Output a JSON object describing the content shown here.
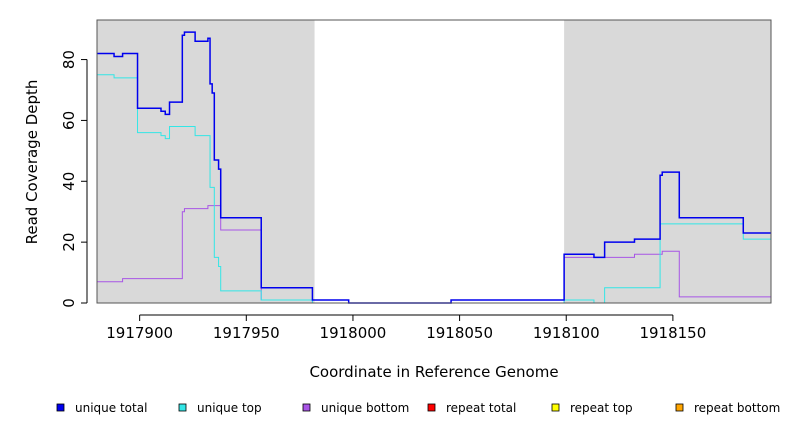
{
  "chart_data": {
    "type": "line",
    "title": "",
    "xlabel": "Coordinate in Reference Genome",
    "ylabel": "Read Coverage Depth",
    "xlim": [
      1917880,
      1918196
    ],
    "ylim": [
      0,
      93
    ],
    "x_ticks": [
      1917900,
      1917950,
      1918000,
      1918050,
      1918100,
      1918150
    ],
    "y_ticks": [
      0,
      20,
      40,
      60,
      80
    ],
    "grid": false,
    "legend_position": "bottom",
    "shaded_regions": [
      [
        1917880,
        1917982
      ],
      [
        1918099,
        1918196
      ]
    ],
    "series": [
      {
        "name": "unique total",
        "color": "#0000ee",
        "points": [
          [
            1917880,
            82
          ],
          [
            1917888,
            82
          ],
          [
            1917888,
            81
          ],
          [
            1917892,
            81
          ],
          [
            1917892,
            82
          ],
          [
            1917899,
            82
          ],
          [
            1917899,
            64
          ],
          [
            1917910,
            64
          ],
          [
            1917910,
            63
          ],
          [
            1917912,
            63
          ],
          [
            1917912,
            62
          ],
          [
            1917914,
            62
          ],
          [
            1917914,
            66
          ],
          [
            1917920,
            66
          ],
          [
            1917920,
            88
          ],
          [
            1917921,
            88
          ],
          [
            1917921,
            89
          ],
          [
            1917926,
            89
          ],
          [
            1917926,
            86
          ],
          [
            1917932,
            86
          ],
          [
            1917932,
            87
          ],
          [
            1917933,
            87
          ],
          [
            1917933,
            72
          ],
          [
            1917934,
            72
          ],
          [
            1917934,
            69
          ],
          [
            1917935,
            69
          ],
          [
            1917935,
            47
          ],
          [
            1917937,
            47
          ],
          [
            1917937,
            44
          ],
          [
            1917938,
            44
          ],
          [
            1917938,
            28
          ],
          [
            1917957,
            28
          ],
          [
            1917957,
            5
          ],
          [
            1917981,
            5
          ],
          [
            1917981,
            1
          ],
          [
            1917998,
            1
          ],
          [
            1917998,
            0
          ],
          [
            1918046,
            0
          ],
          [
            1918046,
            1
          ],
          [
            1918099,
            1
          ],
          [
            1918099,
            16
          ],
          [
            1918113,
            16
          ],
          [
            1918113,
            15
          ],
          [
            1918118,
            15
          ],
          [
            1918118,
            20
          ],
          [
            1918132,
            20
          ],
          [
            1918132,
            21
          ],
          [
            1918144,
            21
          ],
          [
            1918144,
            42
          ],
          [
            1918145,
            42
          ],
          [
            1918145,
            43
          ],
          [
            1918153,
            43
          ],
          [
            1918153,
            28
          ],
          [
            1918183,
            28
          ],
          [
            1918183,
            23
          ],
          [
            1918196,
            23
          ]
        ]
      },
      {
        "name": "unique top",
        "color": "#33e6e6",
        "points": [
          [
            1917880,
            75
          ],
          [
            1917888,
            75
          ],
          [
            1917888,
            74
          ],
          [
            1917899,
            74
          ],
          [
            1917899,
            56
          ],
          [
            1917910,
            56
          ],
          [
            1917910,
            55
          ],
          [
            1917912,
            55
          ],
          [
            1917912,
            54
          ],
          [
            1917914,
            54
          ],
          [
            1917914,
            58
          ],
          [
            1917926,
            58
          ],
          [
            1917926,
            55
          ],
          [
            1917933,
            55
          ],
          [
            1917933,
            38
          ],
          [
            1917935,
            38
          ],
          [
            1917935,
            15
          ],
          [
            1917937,
            15
          ],
          [
            1917937,
            12
          ],
          [
            1917938,
            12
          ],
          [
            1917938,
            4
          ],
          [
            1917957,
            4
          ],
          [
            1917957,
            1
          ],
          [
            1917981,
            1
          ],
          [
            1917981,
            0
          ],
          [
            1918099,
            0
          ],
          [
            1918099,
            1
          ],
          [
            1918113,
            1
          ],
          [
            1918113,
            0
          ],
          [
            1918118,
            0
          ],
          [
            1918118,
            5
          ],
          [
            1918144,
            5
          ],
          [
            1918144,
            26
          ],
          [
            1918183,
            26
          ],
          [
            1918183,
            21
          ],
          [
            1918196,
            21
          ]
        ]
      },
      {
        "name": "unique bottom",
        "color": "#a855e6",
        "points": [
          [
            1917880,
            7
          ],
          [
            1917892,
            7
          ],
          [
            1917892,
            8
          ],
          [
            1917920,
            8
          ],
          [
            1917920,
            30
          ],
          [
            1917921,
            30
          ],
          [
            1917921,
            31
          ],
          [
            1917932,
            31
          ],
          [
            1917932,
            32
          ],
          [
            1917938,
            32
          ],
          [
            1917938,
            24
          ],
          [
            1917957,
            24
          ],
          [
            1917957,
            1
          ],
          [
            1917981,
            1
          ],
          [
            1917981,
            0
          ],
          [
            1918099,
            0
          ],
          [
            1918099,
            15
          ],
          [
            1918132,
            15
          ],
          [
            1918132,
            16
          ],
          [
            1918145,
            16
          ],
          [
            1918145,
            17
          ],
          [
            1918153,
            17
          ],
          [
            1918153,
            2
          ],
          [
            1918196,
            2
          ]
        ]
      },
      {
        "name": "repeat total",
        "color": "#ff0000",
        "points": [
          [
            1917880,
            0
          ],
          [
            1918196,
            0
          ]
        ]
      },
      {
        "name": "repeat top",
        "color": "#ffff00",
        "points": [
          [
            1917880,
            0
          ],
          [
            1918196,
            0
          ]
        ]
      },
      {
        "name": "repeat bottom",
        "color": "#ffa500",
        "points": [
          [
            1917880,
            0
          ],
          [
            1918196,
            0
          ]
        ]
      }
    ]
  }
}
